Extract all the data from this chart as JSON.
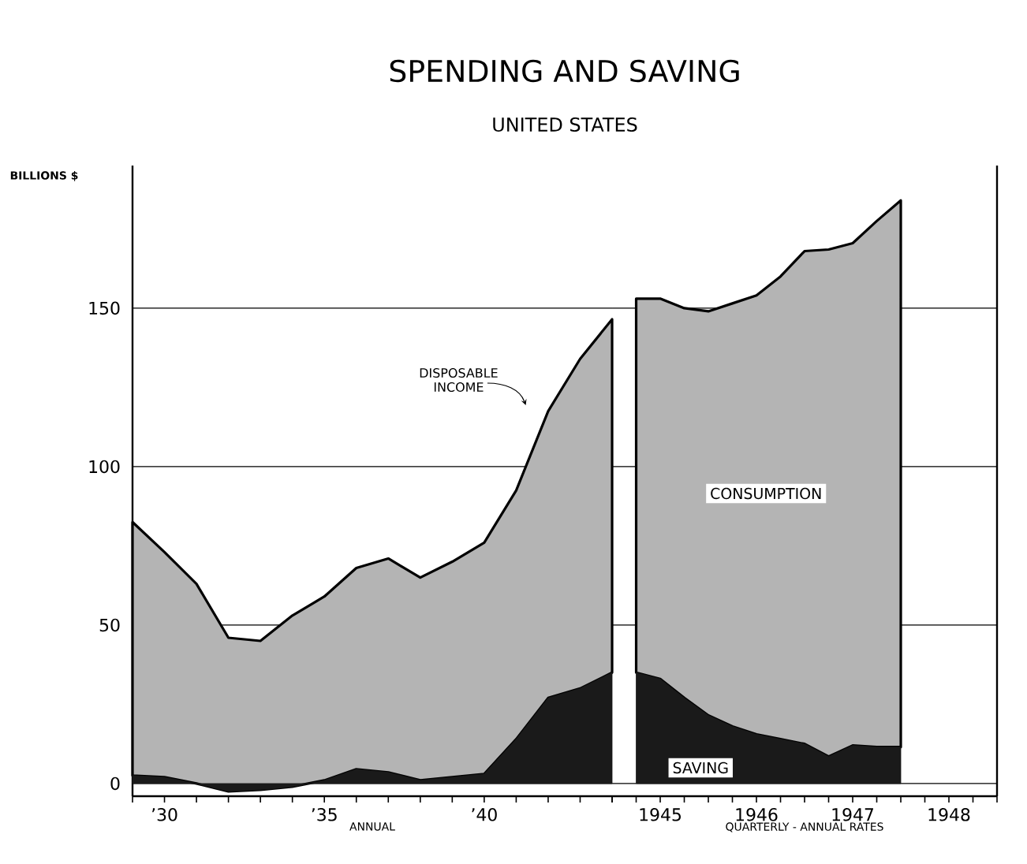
{
  "chart_data": [
    {
      "type": "area",
      "title": "SPENDING AND SAVING",
      "subtitle": "UNITED STATES",
      "ylabel": "BILLIONS $",
      "xlabel": "ANNUAL",
      "stacked": true,
      "grid": "y",
      "x": [
        1929,
        1930,
        1931,
        1932,
        1933,
        1934,
        1935,
        1936,
        1937,
        1938,
        1939,
        1940,
        1941,
        1942,
        1943,
        1944
      ],
      "xlim": [
        1929,
        1944
      ],
      "xticks": [
        {
          "value": 1929,
          "label": null
        },
        {
          "value": 1930,
          "label": "’30"
        },
        {
          "value": 1931,
          "label": null
        },
        {
          "value": 1932,
          "label": null
        },
        {
          "value": 1933,
          "label": null
        },
        {
          "value": 1934,
          "label": null
        },
        {
          "value": 1935,
          "label": "’35"
        },
        {
          "value": 1936,
          "label": null
        },
        {
          "value": 1937,
          "label": null
        },
        {
          "value": 1938,
          "label": null
        },
        {
          "value": 1939,
          "label": null
        },
        {
          "value": 1940,
          "label": "’40"
        },
        {
          "value": 1941,
          "label": null
        },
        {
          "value": 1942,
          "label": null
        },
        {
          "value": 1943,
          "label": null
        },
        {
          "value": 1944,
          "label": null
        }
      ],
      "ylim": [
        -4,
        195
      ],
      "yticks": [
        0,
        50,
        100,
        150
      ],
      "series": [
        {
          "color": "#1a1a1a",
          "values": [
            2.5,
            2,
            0,
            -2.5,
            -2,
            -1,
            1,
            4.5,
            3.5,
            1,
            2,
            3,
            14,
            27,
            30,
            35
          ]
        },
        {
          "color": "#b4b4b4",
          "values": [
            80,
            71,
            63,
            48.5,
            47,
            54,
            58,
            63.5,
            67.5,
            64,
            68,
            73,
            78.5,
            90.5,
            104,
            111.5
          ]
        }
      ],
      "annotations": [
        "DISPOSABLE INCOME"
      ]
    },
    {
      "type": "area",
      "xlabel": "QUARTERLY - ANNUAL RATES",
      "stacked": true,
      "grid": "y",
      "tick_labels": "x",
      "x": [
        1945.25,
        1945.5,
        1945.75,
        1946,
        1946.25,
        1946.5,
        1946.75,
        1947,
        1947.25,
        1947.5,
        1947.75,
        1948
      ],
      "xlim": [
        1945,
        1949
      ],
      "xticks": [
        {
          "value": 1945,
          "label": null
        },
        {
          "value": 1945.25,
          "label": null
        },
        {
          "value": 1945.5,
          "label": "1945"
        },
        {
          "value": 1945.75,
          "label": null
        },
        {
          "value": 1946,
          "label": null
        },
        {
          "value": 1946.25,
          "label": null
        },
        {
          "value": 1946.5,
          "label": "1946"
        },
        {
          "value": 1946.75,
          "label": null
        },
        {
          "value": 1947,
          "label": null
        },
        {
          "value": 1947.25,
          "label": null
        },
        {
          "value": 1947.5,
          "label": "1947"
        },
        {
          "value": 1947.75,
          "label": null
        },
        {
          "value": 1948,
          "label": null
        },
        {
          "value": 1948.25,
          "label": null
        },
        {
          "value": 1948.5,
          "label": "1948"
        },
        {
          "value": 1948.75,
          "label": null
        },
        {
          "value": 1949,
          "label": null
        }
      ],
      "ylim": [
        -4,
        195
      ],
      "yticks": [
        0,
        50,
        100,
        150
      ],
      "series": [
        {
          "name": "SAVING",
          "color": "#1a1a1a",
          "values": [
            35,
            33,
            27,
            21.5,
            18,
            15.5,
            14,
            12.5,
            8.5,
            12,
            11.5,
            11.5
          ]
        },
        {
          "name": "CONSUMPTION",
          "color": "#b4b4b4",
          "values": [
            118,
            120,
            123,
            127.5,
            133.5,
            138.5,
            146,
            155.5,
            160,
            158.5,
            166,
            172.5
          ]
        }
      ]
    }
  ]
}
